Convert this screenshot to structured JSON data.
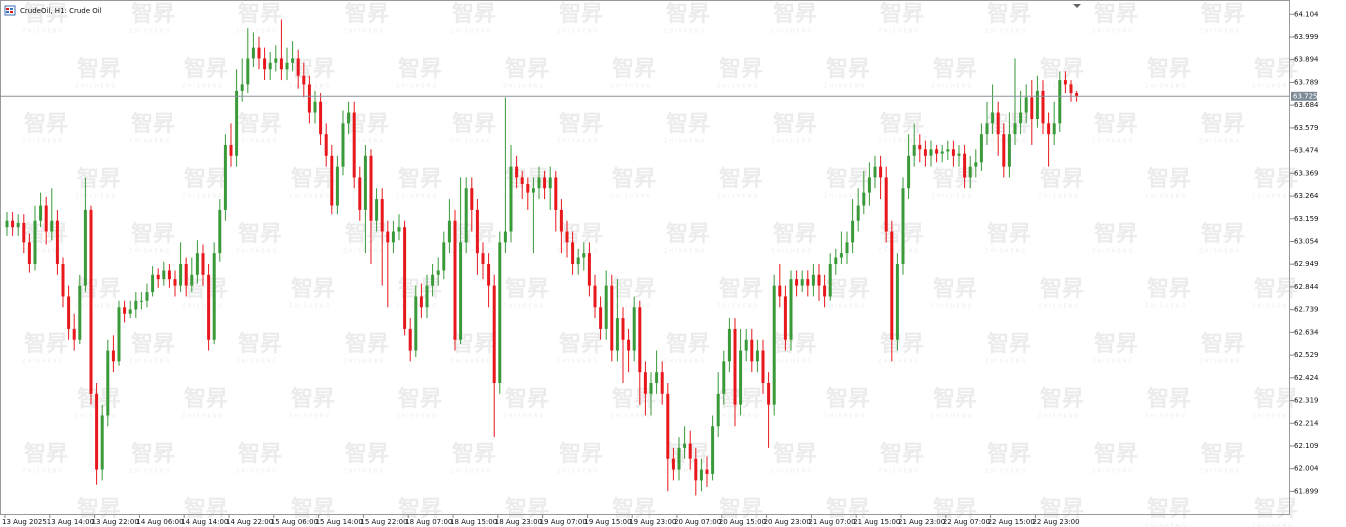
{
  "chart_data": {
    "type": "candlestick",
    "title": "CrudeOil, H1:  Crude Oil",
    "watermark": "智昇",
    "watermark_sub": "ZHISHENG",
    "up_color": "#3a9a3a",
    "down_color": "#e8171c",
    "last_price": 63.725,
    "ylim": [
      61.79,
      64.17
    ],
    "yticks": [
      64.104,
      63.999,
      63.894,
      63.789,
      63.684,
      63.579,
      63.474,
      63.369,
      63.264,
      63.159,
      63.054,
      62.949,
      62.844,
      62.739,
      62.634,
      62.529,
      62.424,
      62.319,
      62.214,
      62.109,
      62.004,
      61.899
    ],
    "categories": [
      "13 Aug 2025",
      null,
      null,
      null,
      null,
      null,
      null,
      null,
      "13 Aug 14:00",
      null,
      null,
      null,
      null,
      null,
      null,
      null,
      "13 Aug 22:00",
      null,
      null,
      null,
      null,
      null,
      null,
      null,
      "14 Aug 06:00",
      null,
      null,
      null,
      null,
      null,
      null,
      null,
      "14 Aug 14:00",
      null,
      null,
      null,
      null,
      null,
      null,
      null,
      "14 Aug 22:00",
      null,
      null,
      null,
      null,
      null,
      null,
      null,
      "15 Aug 06:00",
      null,
      null,
      null,
      null,
      null,
      null,
      null,
      "15 Aug 14:00",
      null,
      null,
      null,
      null,
      null,
      null,
      null,
      "15 Aug 22:00",
      null,
      null,
      null,
      null,
      null,
      null,
      null,
      "18 Aug 07:00",
      null,
      null,
      null,
      null,
      null,
      null,
      null,
      "18 Aug 15:00",
      null,
      null,
      null,
      null,
      null,
      null,
      null,
      "18 Aug 23:00",
      null,
      null,
      null,
      null,
      null,
      null,
      null,
      "19 Aug 07:00",
      null,
      null,
      null,
      null,
      null,
      null,
      null,
      "19 Aug 15:00",
      null,
      null,
      null,
      null,
      null,
      null,
      null,
      "19 Aug 23:00",
      null,
      null,
      null,
      null,
      null,
      null,
      null,
      "20 Aug 07:00",
      null,
      null,
      null,
      null,
      null,
      null,
      null,
      "20 Aug 15:00",
      null,
      null,
      null,
      null,
      null,
      null,
      null,
      "20 Aug 23:00",
      null,
      null,
      null,
      null,
      null,
      null,
      null,
      "21 Aug 07:00",
      null,
      null,
      null,
      null,
      null,
      null,
      null,
      "21 Aug 15:00",
      null,
      null,
      null,
      null,
      null,
      null,
      null,
      "21 Aug 23:00",
      null,
      null,
      null,
      null,
      null,
      null,
      null,
      "22 Aug 07:00",
      null,
      null,
      null,
      null,
      null,
      null,
      null,
      "22 Aug 15:00",
      null,
      null,
      null,
      null,
      null,
      null,
      null,
      "22 Aug 23:00",
      null,
      null,
      null,
      null,
      null,
      null,
      null
    ],
    "open": [
      63.12,
      63.15,
      63.12,
      63.14,
      63.05,
      62.95,
      63.15,
      63.22,
      63.1,
      63.15,
      62.95,
      62.8,
      62.65,
      62.6,
      62.85,
      63.2,
      62.35,
      62.0,
      62.25,
      62.55,
      62.5,
      62.75,
      62.72,
      62.74,
      62.78,
      62.78,
      62.82,
      62.9,
      62.88,
      62.92,
      62.88,
      62.85,
      62.95,
      62.85,
      62.9,
      63.0,
      62.9,
      62.6,
      63.0,
      63.2,
      63.5,
      63.45,
      63.75,
      63.78,
      63.9,
      63.95,
      63.9,
      63.85,
      63.88,
      63.9,
      63.85,
      63.88,
      63.9,
      63.82,
      63.78,
      63.65,
      63.7,
      63.55,
      63.45,
      63.22,
      63.4,
      63.6,
      63.65,
      63.35,
      63.2,
      63.45,
      63.15,
      63.25,
      63.1,
      63.05,
      63.1,
      63.12,
      62.65,
      62.55,
      62.8,
      62.75,
      62.85,
      62.9,
      62.92,
      63.05,
      63.15,
      62.6,
      63.05,
      63.3,
      63.2,
      63.0,
      62.95,
      62.85,
      62.4,
      63.05,
      63.1,
      63.4,
      63.35,
      63.32,
      63.28,
      63.3,
      63.35,
      63.3,
      63.35,
      63.2,
      63.1,
      63.05,
      62.95,
      62.98,
      63.0,
      62.85,
      62.75,
      62.65,
      62.85,
      62.55,
      62.7,
      62.6,
      62.55,
      62.75,
      62.45,
      62.35,
      62.4,
      62.45,
      62.35,
      62.05,
      62.0,
      62.1,
      62.12,
      62.05,
      61.95,
      62.0,
      61.98,
      62.2,
      62.35,
      62.5,
      62.65,
      62.3,
      62.55,
      62.6,
      62.5,
      62.55,
      62.4,
      62.3,
      62.85,
      62.8,
      62.6,
      62.88,
      62.85,
      62.88,
      62.85,
      62.9,
      62.85,
      62.8,
      62.95,
      62.98,
      63.0,
      63.05,
      63.15,
      63.22,
      63.28,
      63.35,
      63.4,
      63.35,
      63.1,
      62.6,
      62.95,
      63.3,
      63.45,
      63.5,
      63.48,
      63.45,
      63.48,
      63.46,
      63.47,
      63.48,
      63.45,
      63.46,
      63.35,
      63.4,
      63.42,
      63.55,
      63.6,
      63.65,
      63.55,
      63.4,
      63.55,
      63.6,
      63.65,
      63.72,
      63.62,
      63.75,
      63.6,
      63.55,
      63.6,
      63.8,
      63.78,
      63.74
    ],
    "high": [
      63.19,
      63.19,
      63.18,
      63.18,
      63.09,
      63.22,
      63.28,
      63.26,
      63.3,
      63.2,
      62.98,
      62.85,
      62.72,
      62.9,
      63.35,
      63.22,
      62.4,
      62.3,
      62.6,
      62.62,
      62.78,
      62.78,
      62.78,
      62.82,
      62.82,
      62.86,
      62.94,
      62.93,
      62.96,
      62.95,
      62.92,
      63.05,
      62.98,
      62.98,
      63.06,
      63.04,
      62.95,
      63.05,
      63.25,
      63.55,
      63.6,
      63.85,
      63.9,
      64.04,
      64.02,
      64.0,
      63.95,
      63.93,
      63.96,
      64.08,
      63.95,
      63.98,
      63.94,
      63.88,
      63.82,
      63.75,
      63.74,
      63.6,
      63.5,
      63.45,
      63.66,
      63.7,
      63.7,
      63.4,
      63.5,
      63.48,
      63.3,
      63.3,
      63.15,
      63.15,
      63.18,
      63.15,
      62.7,
      62.85,
      62.86,
      62.9,
      62.95,
      62.98,
      63.1,
      63.25,
      63.2,
      63.35,
      63.35,
      63.35,
      63.25,
      63.05,
      63.0,
      62.9,
      63.1,
      63.72,
      63.5,
      63.45,
      63.38,
      63.35,
      63.35,
      63.4,
      63.38,
      63.4,
      63.38,
      63.25,
      63.15,
      63.1,
      63.02,
      63.05,
      63.05,
      62.9,
      62.8,
      62.92,
      62.9,
      62.88,
      62.75,
      62.65,
      62.8,
      62.78,
      62.5,
      62.45,
      62.55,
      62.5,
      62.4,
      62.1,
      62.15,
      62.2,
      62.18,
      62.1,
      62.05,
      62.06,
      62.25,
      62.45,
      62.55,
      62.7,
      62.7,
      62.65,
      62.65,
      62.65,
      62.6,
      62.6,
      62.45,
      62.9,
      62.95,
      62.85,
      62.92,
      62.92,
      62.92,
      62.92,
      62.95,
      62.95,
      62.9,
      63.0,
      63.02,
      63.1,
      63.1,
      63.25,
      63.3,
      63.38,
      63.42,
      63.45,
      63.45,
      63.4,
      63.15,
      63.0,
      63.35,
      63.55,
      63.6,
      63.55,
      63.52,
      63.52,
      63.5,
      63.5,
      63.52,
      63.52,
      63.5,
      63.5,
      63.45,
      63.48,
      63.6,
      63.7,
      63.78,
      63.7,
      63.6,
      63.65,
      63.9,
      63.75,
      63.78,
      63.8,
      63.82,
      63.8,
      63.65,
      63.7,
      63.84,
      63.84,
      63.8,
      63.75
    ],
    "low": [
      63.08,
      63.08,
      63.08,
      63.0,
      62.91,
      62.92,
      63.12,
      63.04,
      63.06,
      62.9,
      62.75,
      62.6,
      62.55,
      62.58,
      62.82,
      62.3,
      61.93,
      61.95,
      62.2,
      62.45,
      62.48,
      62.68,
      62.7,
      62.7,
      62.74,
      62.75,
      62.8,
      62.84,
      62.85,
      62.84,
      62.8,
      62.82,
      62.8,
      62.82,
      62.86,
      62.85,
      62.55,
      62.58,
      62.96,
      63.15,
      63.4,
      63.4,
      63.7,
      63.74,
      63.86,
      63.85,
      63.8,
      63.8,
      63.84,
      63.8,
      63.8,
      63.84,
      63.76,
      63.72,
      63.6,
      63.6,
      63.5,
      63.4,
      63.18,
      63.18,
      63.36,
      63.55,
      63.3,
      63.15,
      63.0,
      62.95,
      63.1,
      62.85,
      62.75,
      63.0,
      63.06,
      62.62,
      62.5,
      62.52,
      62.7,
      62.7,
      62.8,
      62.85,
      62.88,
      63.0,
      62.55,
      62.58,
      63.0,
      63.1,
      62.9,
      62.88,
      62.75,
      62.15,
      62.35,
      63.0,
      63.05,
      63.3,
      63.25,
      63.2,
      63.0,
      63.25,
      63.25,
      63.2,
      63.1,
      63.0,
      62.98,
      62.9,
      62.9,
      62.92,
      62.8,
      62.7,
      62.6,
      62.6,
      62.5,
      62.5,
      62.4,
      62.45,
      62.5,
      62.3,
      62.25,
      62.25,
      62.35,
      62.3,
      61.9,
      61.95,
      61.95,
      62.05,
      62.0,
      61.88,
      61.9,
      61.92,
      61.95,
      62.15,
      62.3,
      62.45,
      62.2,
      62.25,
      62.5,
      62.45,
      62.45,
      62.35,
      62.1,
      62.25,
      62.75,
      62.55,
      62.55,
      62.8,
      62.82,
      62.8,
      62.8,
      62.78,
      62.75,
      62.78,
      62.9,
      62.95,
      62.95,
      63.0,
      63.1,
      63.18,
      63.22,
      63.3,
      63.25,
      63.05,
      62.5,
      62.55,
      62.9,
      63.25,
      63.4,
      63.42,
      63.4,
      63.4,
      63.42,
      63.42,
      63.43,
      63.4,
      63.4,
      63.3,
      63.3,
      63.35,
      63.38,
      63.5,
      63.55,
      63.45,
      63.35,
      63.35,
      63.5,
      63.55,
      63.6,
      63.5,
      63.58,
      63.55,
      63.4,
      63.5,
      63.56,
      63.74,
      63.7,
      63.7
    ],
    "close": [
      63.15,
      63.12,
      63.14,
      63.05,
      62.95,
      63.15,
      63.22,
      63.1,
      63.15,
      62.95,
      62.8,
      62.65,
      62.6,
      62.85,
      63.2,
      62.35,
      62.0,
      62.25,
      62.55,
      62.5,
      62.75,
      62.72,
      62.74,
      62.78,
      62.78,
      62.82,
      62.9,
      62.88,
      62.92,
      62.88,
      62.85,
      62.95,
      62.85,
      62.9,
      63.0,
      62.9,
      62.6,
      63.0,
      63.2,
      63.5,
      63.45,
      63.75,
      63.78,
      63.9,
      63.95,
      63.9,
      63.85,
      63.88,
      63.9,
      63.85,
      63.88,
      63.9,
      63.82,
      63.78,
      63.65,
      63.7,
      63.55,
      63.45,
      63.22,
      63.4,
      63.6,
      63.65,
      63.35,
      63.2,
      63.45,
      63.15,
      63.25,
      63.1,
      63.05,
      63.1,
      63.12,
      62.65,
      62.55,
      62.8,
      62.75,
      62.85,
      62.9,
      62.92,
      63.05,
      63.15,
      62.6,
      63.05,
      63.3,
      63.2,
      63.0,
      62.95,
      62.85,
      62.4,
      63.05,
      63.1,
      63.4,
      63.35,
      63.32,
      63.28,
      63.3,
      63.35,
      63.3,
      63.35,
      63.2,
      63.1,
      63.05,
      62.95,
      62.98,
      63.0,
      62.85,
      62.75,
      62.65,
      62.85,
      62.55,
      62.7,
      62.6,
      62.55,
      62.75,
      62.45,
      62.35,
      62.4,
      62.45,
      62.35,
      62.05,
      62.0,
      62.1,
      62.12,
      62.05,
      61.95,
      62.0,
      61.98,
      62.2,
      62.35,
      62.5,
      62.65,
      62.3,
      62.55,
      62.6,
      62.5,
      62.55,
      62.4,
      62.3,
      62.85,
      62.8,
      62.6,
      62.88,
      62.85,
      62.88,
      62.85,
      62.9,
      62.85,
      62.8,
      62.95,
      62.98,
      63.0,
      63.05,
      63.15,
      63.22,
      63.28,
      63.35,
      63.4,
      63.35,
      63.1,
      62.6,
      62.95,
      63.3,
      63.45,
      63.5,
      63.48,
      63.45,
      63.48,
      63.46,
      63.47,
      63.48,
      63.45,
      63.46,
      63.35,
      63.4,
      63.42,
      63.55,
      63.6,
      63.65,
      63.55,
      63.4,
      63.55,
      63.6,
      63.65,
      63.72,
      63.62,
      63.75,
      63.6,
      63.55,
      63.6,
      63.8,
      63.78,
      63.74,
      63.725
    ]
  }
}
